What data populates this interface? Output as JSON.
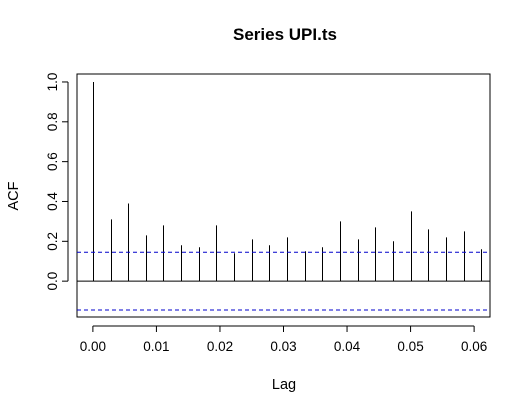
{
  "chart_data": {
    "type": "bar",
    "title": "Series  UPI.ts",
    "xlabel": "Lag",
    "ylabel": "ACF",
    "xlim": [
      -0.0025,
      0.0625
    ],
    "ylim": [
      -0.18,
      1.04
    ],
    "x_ticks": [
      "0.00",
      "0.01",
      "0.02",
      "0.03",
      "0.04",
      "0.05",
      "0.06"
    ],
    "y_ticks": [
      "0.0",
      "0.2",
      "0.4",
      "0.6",
      "0.8",
      "1.0"
    ],
    "lags": [
      0.0,
      0.00278,
      0.00556,
      0.00833,
      0.01111,
      0.01389,
      0.01667,
      0.01944,
      0.02222,
      0.025,
      0.02778,
      0.03056,
      0.03333,
      0.03611,
      0.03889,
      0.04167,
      0.04444,
      0.04722,
      0.05,
      0.05278,
      0.05556,
      0.05833,
      0.06111
    ],
    "values": [
      1.0,
      0.31,
      0.39,
      0.23,
      0.28,
      0.18,
      0.17,
      0.28,
      0.14,
      0.21,
      0.18,
      0.22,
      0.15,
      0.17,
      0.3,
      0.21,
      0.27,
      0.2,
      0.35,
      0.26,
      0.22,
      0.25,
      0.16
    ],
    "confidence_bounds": [
      0.145,
      -0.145
    ],
    "zero_line": 0,
    "grid": false,
    "colors": {
      "bars": "#000000",
      "confidence": "#0000cc",
      "axes": "#000000"
    }
  }
}
